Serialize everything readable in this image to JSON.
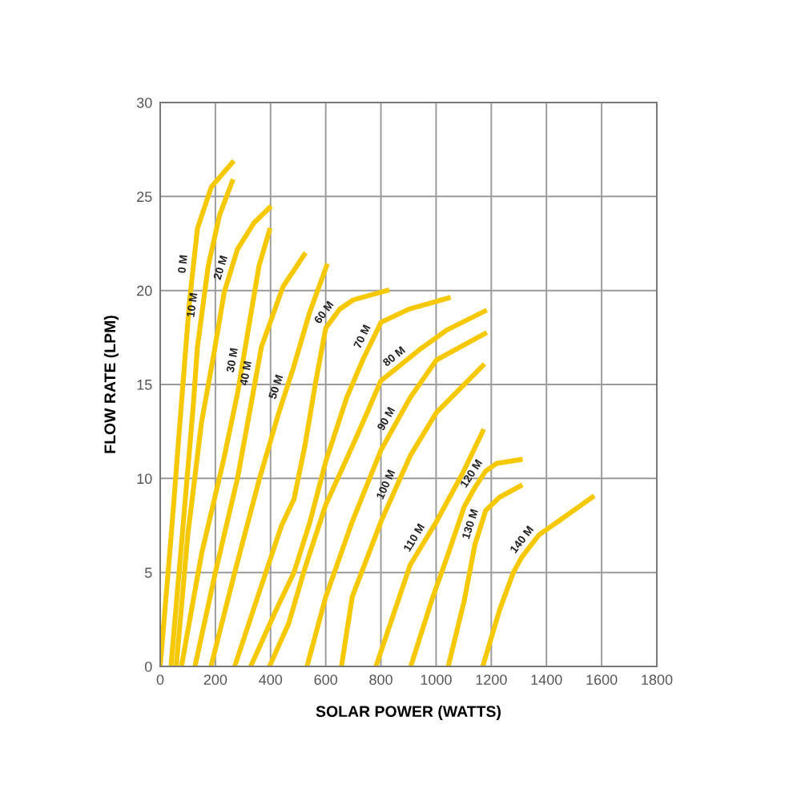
{
  "chart_data": {
    "type": "line",
    "xlabel": "SOLAR POWER (WATTS)",
    "ylabel": "FLOW RATE (LPM)",
    "xlim": [
      0,
      1800
    ],
    "xticks": [
      0,
      200,
      400,
      600,
      800,
      1000,
      1200,
      1400,
      1600,
      1800
    ],
    "ylim": [
      0,
      30
    ],
    "yticks": [
      0,
      5,
      10,
      15,
      20,
      25,
      30
    ],
    "grid": true,
    "legend": false,
    "marker": "none",
    "line_style": "solid",
    "series": [
      {
        "name": "0 M",
        "color": "#f5c800",
        "x": [
          0,
          40,
          77,
          106,
          135,
          185,
          261
        ],
        "values": [
          0,
          7,
          14,
          19.4,
          23.3,
          25.5,
          26.8
        ]
      },
      {
        "name": "10 M",
        "color": "#f5c800",
        "x": [
          39,
          80,
          120,
          135,
          174,
          215,
          261
        ],
        "values": [
          0,
          7,
          13.9,
          17,
          21.3,
          24,
          25.8
        ]
      },
      {
        "name": "20 M",
        "color": "#f5c800",
        "x": [
          58,
          100,
          150,
          193,
          232,
          280,
          340,
          396
        ],
        "values": [
          0,
          7,
          13,
          16.5,
          19.9,
          22.2,
          23.6,
          24.4
        ]
      },
      {
        "name": "30 M",
        "color": "#f5c800",
        "x": [
          77,
          150,
          230,
          280,
          319,
          358,
          396
        ],
        "values": [
          0,
          6,
          11,
          14.5,
          17.9,
          21.3,
          23.2
        ]
      },
      {
        "name": "40 M",
        "color": "#f5c800",
        "x": [
          126,
          200,
          280,
          330,
          367,
          445,
          522
        ],
        "values": [
          0,
          5,
          10,
          14,
          17,
          20.2,
          21.9
        ]
      },
      {
        "name": "50 M",
        "color": "#f5c800",
        "x": [
          184,
          270,
          360,
          430,
          483,
          541,
          603
        ],
        "values": [
          0,
          5,
          10,
          13.5,
          15.9,
          18.8,
          21.3
        ]
      },
      {
        "name": "60 M",
        "color": "#f5c800",
        "x": [
          270,
          360,
          440,
          485,
          524,
          562,
          600,
          650,
          700,
          822
        ],
        "values": [
          0,
          4,
          7.5,
          8.9,
          11.7,
          15,
          18,
          19,
          19.5,
          20
        ]
      },
      {
        "name": "70 M",
        "color": "#f5c800",
        "x": [
          328,
          420,
          485,
          543,
          600,
          676,
          734,
          800,
          900,
          1044
        ],
        "values": [
          0,
          3,
          5,
          7.7,
          10.9,
          14.3,
          16.3,
          18.3,
          19,
          19.6
        ]
      },
      {
        "name": "80 M",
        "color": "#f5c800",
        "x": [
          396,
          466,
          524,
          600,
          696,
          750,
          800,
          944,
          1039,
          1176
        ],
        "values": [
          0,
          2.3,
          5.2,
          8.6,
          11.7,
          13.5,
          15.2,
          16.9,
          17.9,
          18.9
        ]
      },
      {
        "name": "90 M",
        "color": "#f5c800",
        "x": [
          532,
          600,
          696,
          800,
          906,
          1001,
          1176
        ],
        "values": [
          0,
          3.7,
          7.7,
          11.5,
          14.3,
          16.3,
          17.7
        ]
      },
      {
        "name": "100 M",
        "color": "#f5c800",
        "x": [
          657,
          696,
          800,
          906,
          1001,
          1169
        ],
        "values": [
          0,
          3.7,
          7.7,
          11.2,
          13.5,
          16
        ]
      },
      {
        "name": "110 M",
        "color": "#f5c800",
        "x": [
          782,
          906,
          1001,
          1097,
          1169
        ],
        "values": [
          0,
          5.4,
          7.7,
          10.3,
          12.5
        ]
      },
      {
        "name": "120 M",
        "color": "#f5c800",
        "x": [
          908,
          986,
          1044,
          1102,
          1140,
          1180,
          1220,
          1305
        ],
        "values": [
          0,
          3.6,
          6,
          8.5,
          9.5,
          10.4,
          10.8,
          11
        ]
      },
      {
        "name": "130 M",
        "color": "#f5c800",
        "x": [
          1044,
          1102,
          1141,
          1180,
          1230,
          1305
        ],
        "values": [
          0,
          3.5,
          6.5,
          8.3,
          9,
          9.6
        ]
      },
      {
        "name": "140 M",
        "color": "#f5c800",
        "x": [
          1169,
          1230,
          1280,
          1310,
          1373,
          1470,
          1566
        ],
        "values": [
          0,
          3,
          5,
          5.8,
          7,
          8,
          9
        ]
      }
    ]
  }
}
